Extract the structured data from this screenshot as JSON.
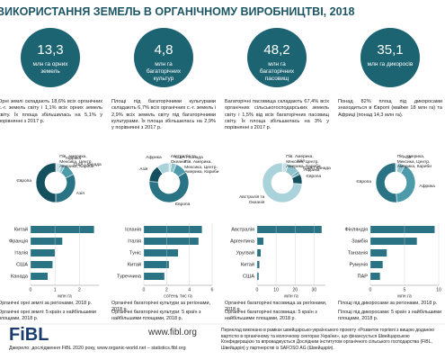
{
  "header": {
    "title": "ВИКОРИСТАННЯ ЗЕМЕЛЬ В ОРГАНІЧНОМУ ВИРОБНИЦТВІ, 2018"
  },
  "donut_colors": [
    "#c9e1e6",
    "#8fc3cd",
    "#4d9aaa",
    "#2a7384",
    "#15505e",
    "#a9d2da"
  ],
  "bar_color": "#2a7384",
  "stat_color": "#1d6473",
  "panels": [
    {
      "stat": {
        "value": "13,3",
        "unit": "млн га орних земель"
      },
      "text": "Орні землі складають 18,6% всіх органічних с.-г. земель світу і 1,1% всіх орних земель світу. Їх площа збільшилась на 5,1% у порівнянні з 2017 р.",
      "donut": {
        "type": "pie",
        "labels": [
          "Пів. Америка, Мексика, Центр. Америка, Кариби",
          "Африка",
          "США і Канада",
          "Азія",
          "Європа"
        ],
        "values": [
          5,
          3,
          10,
          32,
          50
        ]
      },
      "bars": {
        "type": "bar",
        "categories": [
          "Китай",
          "Франція",
          "Італія",
          "США",
          "Канада"
        ],
        "values": [
          2.6,
          1.3,
          1.0,
          0.9,
          0.7
        ],
        "xlim": [
          0,
          2.8
        ],
        "xticks": [
          0,
          1,
          2
        ],
        "xlabel": "млн га"
      },
      "captions": [
        "Органічні орні землі за регіонами, 2018 р.",
        "Органічні орні землі: 5 країн з найбільшими площами, 2018 р."
      ]
    },
    {
      "stat": {
        "value": "4,8",
        "unit": "млн га багаторічних культур"
      },
      "text": "Площі під багаторічними культурами складають 6,7% всіх органічних с.-г. земель і 2,9% всіх земель світу під багаторічними культурами. Їх площа збільшилась на 2,9% у порівнянні з 2017 р.",
      "donut": {
        "type": "pie",
        "labels": [
          "Австралія та Океанія",
          "США і Канада",
          "Пів. Америка, Мексика, Центр. Америка, Кариби",
          "Європа",
          "Азія",
          "Африка"
        ],
        "values": [
          2,
          4,
          10,
          60,
          14,
          10
        ]
      },
      "bars": {
        "type": "bar",
        "categories": [
          "Іспанія",
          "Італія",
          "Туніс",
          "Китай",
          "Туреччина"
        ],
        "values": [
          5.1,
          4.8,
          3.0,
          2.2,
          1.8
        ],
        "xlim": [
          0,
          6
        ],
        "xticks": [
          0,
          2,
          4,
          6
        ],
        "xlabel": "сотень тис га"
      },
      "captions": [
        "Органічні багаторічні культури за регіонами, 2018 р.",
        "Органічні багаторічні культури: 5 країн з найбільшими площами, 2018 р."
      ]
    },
    {
      "stat": {
        "value": "48,2",
        "unit": "млн га багаторічних пасовищ"
      },
      "text": "Багаторічні пасовища складають 67,4% всіх органічних сільськогосподарських земель світу і 1,5% від всіх багаторічних пасовищ світу. Їх площа збільшилась на 3% у порівнянні з 2017 р.",
      "donut": {
        "type": "pie",
        "labels": [
          "Пів. Америка, Мексика, Центр. Америка, Кариби",
          "Азія",
          "США і Канада",
          "Африка",
          "Європа",
          "Австралія та Океанія"
        ],
        "values": [
          5,
          10,
          2,
          1,
          8,
          74
        ]
      },
      "bars": {
        "type": "bar",
        "categories": [
          "Австралія",
          "Аргентина",
          "Уругвай",
          "Китай",
          "США"
        ],
        "values": [
          34,
          3.3,
          1.9,
          1.2,
          0.8
        ],
        "xlim": [
          0,
          36
        ],
        "xticks": [
          0,
          10,
          20,
          30
        ],
        "xlabel": "млн га"
      },
      "captions": [
        "Органічні багаторічні пасовища за регіонами, 2018 р.",
        "Органічні багаторічні пасовища: 5 країн з найбільшими площами, 2018 р."
      ]
    },
    {
      "stat": {
        "value": "35,1",
        "unit": "млн га дикоросів"
      },
      "text": "Понад 82% площ під дикоросами знаходиться в Європі (майже 18 млн га) та Африці (понад 14,3 млн га).",
      "donut": {
        "type": "pie",
        "labels": [
          "Пів. Америка, Мексика, Центр. Америка, Кариби",
          "Азія",
          "Африка",
          "Європа"
        ],
        "values": [
          2,
          6,
          41,
          51
        ]
      },
      "bars": {
        "type": "bar",
        "categories": [
          "Фінляндія",
          "Замбія",
          "Танзанія",
          "Румунія",
          "ПАР"
        ],
        "values": [
          9.4,
          6.8,
          2.4,
          1.8,
          1.4
        ],
        "xlim": [
          0,
          10
        ],
        "xticks": [
          0,
          5,
          10
        ],
        "xlabel": "млн га"
      },
      "captions": [
        "Площі під дикоросами за регіонами, 2018 р.",
        "Площі під дикоросами: 5 країн з найбільшими площами, 2018 р."
      ]
    }
  ],
  "footer": {
    "logo": "FiBL",
    "site": "www.fibl.org",
    "source": "Джерело: дослідження FiBL 2020 року, www.organic-world.net – statistics.fibl.org",
    "note": "Переклад виконано в рамках швейцарсько-українського проекту «Розвиток торгівлі з вищою доданою вартістю в органічному та молочному секторах України», що фінансується Швейцарською Конфедерацією та впроваджується Дослідним інститутом органічного сільського господарства (FiBL, Швейцарія) у партнерстві із SAFOSO AG (Швейцарія)."
  }
}
